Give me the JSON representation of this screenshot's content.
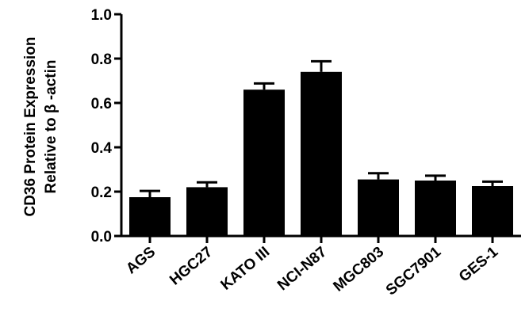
{
  "chart_data": {
    "type": "bar",
    "ylabel_line1": "CD36 Protein Expression",
    "ylabel_line2": "Relative to β -actin",
    "xlabel": "",
    "ylim": [
      0,
      1.0
    ],
    "yticks": [
      "0.0",
      "0.2",
      "0.4",
      "0.6",
      "0.8",
      "1.0"
    ],
    "ytick_values": [
      0,
      0.2,
      0.4,
      0.6,
      0.8,
      1.0
    ],
    "categories": [
      "AGS",
      "HGC27",
      "KATO III",
      "NCI-N87",
      "MGC803",
      "SGC7901",
      "GES-1"
    ],
    "values": [
      0.175,
      0.22,
      0.66,
      0.74,
      0.255,
      0.25,
      0.225
    ],
    "errors": [
      0.028,
      0.022,
      0.028,
      0.048,
      0.028,
      0.022,
      0.02
    ],
    "bar_color": "#000000",
    "grid": false
  }
}
